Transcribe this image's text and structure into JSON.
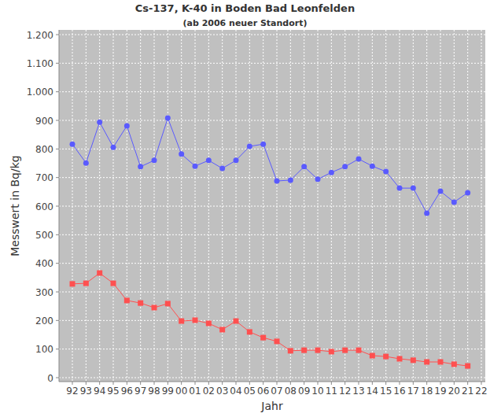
{
  "chart_data": {
    "type": "line",
    "title": "Cs-137, K-40 in Boden Bad Leonfelden",
    "subtitle": "(ab 2006 neuer Standort)",
    "x_label": "Jahr",
    "y_label": "Messwert in Bq/kg",
    "categories": [
      "92",
      "93",
      "94",
      "95",
      "96",
      "97",
      "98",
      "99",
      "00",
      "01",
      "02",
      "03",
      "04",
      "05",
      "06",
      "07",
      "08",
      "09",
      "10",
      "11",
      "12",
      "13",
      "14",
      "15",
      "16",
      "17",
      "18",
      "19",
      "20",
      "21",
      "22"
    ],
    "series": [
      {
        "color": "#5a5aff",
        "marker": "circle",
        "line_style": "solid",
        "values": [
          817,
          751,
          894,
          806,
          881,
          738,
          760,
          908,
          782,
          740,
          760,
          732,
          760,
          809,
          817,
          688,
          691,
          738,
          694,
          718,
          738,
          765,
          740,
          721,
          663,
          663,
          575,
          652,
          614,
          647,
          null
        ]
      },
      {
        "color": "#ff5050",
        "marker": "square",
        "line_style": "solid",
        "values": [
          328,
          330,
          366,
          330,
          270,
          261,
          245,
          259,
          198,
          201,
          190,
          168,
          198,
          160,
          140,
          127,
          94,
          96,
          96,
          91,
          96,
          96,
          77,
          74,
          66,
          61,
          55,
          55,
          47,
          41,
          null
        ]
      }
    ],
    "ylim": [
      0,
      1200
    ],
    "yticks": [
      0,
      100,
      200,
      300,
      400,
      500,
      600,
      700,
      800,
      900,
      {
        "value": 1000,
        "label": "1.000"
      },
      {
        "value": 1100,
        "label": "1.100"
      },
      {
        "value": 1200,
        "label": "1.200"
      }
    ],
    "grid": true
  }
}
